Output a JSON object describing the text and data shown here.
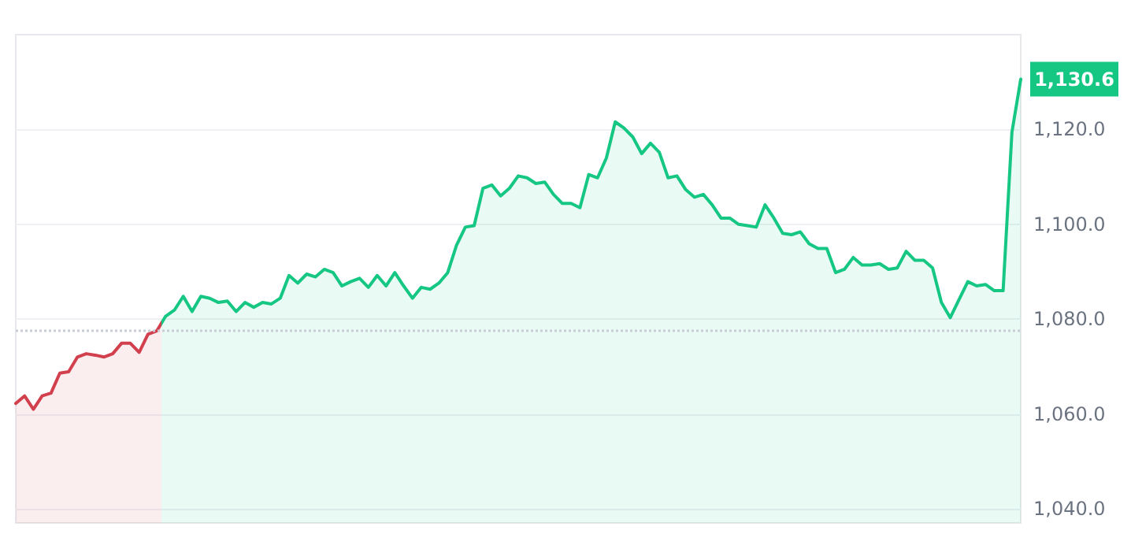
{
  "chart_data": {
    "type": "area",
    "categories": [
      null,
      null,
      null,
      null,
      null,
      null,
      null,
      null,
      null,
      null,
      null,
      null,
      null,
      null,
      null,
      null,
      null,
      null,
      null,
      null,
      null,
      null,
      null,
      null,
      null,
      null,
      null,
      null,
      null,
      null,
      null,
      null,
      null,
      null,
      null,
      null,
      null,
      null,
      null,
      null,
      null,
      null,
      null,
      null,
      null,
      null,
      null,
      null,
      null,
      null,
      null,
      null,
      null,
      null,
      null,
      null,
      null,
      null,
      null,
      null,
      null,
      null,
      null,
      null,
      null,
      null,
      null,
      null,
      null,
      null,
      null,
      null,
      null,
      null,
      null,
      null,
      null,
      null,
      null,
      null,
      null,
      null,
      null,
      null,
      null,
      null,
      null,
      null,
      null,
      null,
      null,
      null,
      null,
      null,
      null,
      null,
      null,
      null,
      null,
      null,
      null,
      null,
      null,
      null,
      null,
      null,
      null,
      null,
      null,
      null,
      null,
      null,
      null,
      null,
      null
    ],
    "series": [
      {
        "colors": [
          "#d23f4d",
          "#d23f4d",
          "#d23f4d",
          "#d23f4d",
          "#d23f4d",
          "#d23f4d",
          "#d23f4d",
          "#d23f4d",
          "#d23f4d",
          "#d23f4d",
          "#d23f4d",
          "#d23f4d",
          "#d23f4d",
          "#d23f4d",
          "#d23f4d",
          "#d23f4d",
          "#d23f4d",
          "#16c784",
          "#16c784",
          "#16c784",
          "#16c784",
          "#16c784",
          "#16c784",
          "#16c784",
          "#16c784",
          "#16c784",
          "#16c784",
          "#16c784",
          "#16c784",
          "#16c784",
          "#16c784",
          "#16c784",
          "#16c784",
          "#16c784",
          "#16c784",
          "#16c784",
          "#16c784",
          "#16c784",
          "#16c784",
          "#16c784",
          "#16c784",
          "#16c784",
          "#16c784",
          "#16c784",
          "#16c784",
          "#16c784",
          "#16c784",
          "#16c784",
          "#16c784",
          "#16c784",
          "#16c784",
          "#16c784",
          "#16c784",
          "#16c784",
          "#16c784",
          "#16c784",
          "#16c784",
          "#16c784",
          "#16c784",
          "#16c784",
          "#16c784",
          "#16c784",
          "#16c784",
          "#16c784",
          "#16c784",
          "#16c784",
          "#16c784",
          "#16c784",
          "#16c784",
          "#16c784",
          "#16c784",
          "#16c784",
          "#16c784",
          "#16c784",
          "#16c784",
          "#16c784",
          "#16c784",
          "#16c784",
          "#16c784",
          "#16c784",
          "#16c784",
          "#16c784",
          "#16c784",
          "#16c784",
          "#16c784",
          "#16c784",
          "#16c784",
          "#16c784",
          "#16c784",
          "#16c784",
          "#16c784",
          "#16c784",
          "#16c784",
          "#16c784",
          "#16c784",
          "#16c784",
          "#16c784",
          "#16c784",
          "#16c784",
          "#16c784",
          "#16c784",
          "#16c784",
          "#16c784",
          "#16c784",
          "#16c784",
          "#16c784",
          "#16c784",
          "#16c784",
          "#16c784",
          "#16c784",
          "#16c784",
          "#16c784",
          "#16c784",
          "#16c784",
          "#16c784"
        ],
        "values": [
          1062.2,
          1063.8,
          1061,
          1063.8,
          1064.4,
          1068.6,
          1068.9,
          1072,
          1072.7,
          1072.4,
          1072,
          1072.7,
          1074.9,
          1074.9,
          1073,
          1076.8,
          1077.5,
          1080.6,
          1081.9,
          1084.8,
          1081.6,
          1084.8,
          1084.4,
          1083.5,
          1083.8,
          1081.6,
          1083.5,
          1082.5,
          1083.5,
          1083.2,
          1084.4,
          1089.2,
          1087.6,
          1089.5,
          1088.9,
          1090.5,
          1089.8,
          1087,
          1087.9,
          1088.6,
          1086.7,
          1089.2,
          1087,
          1089.8,
          1087,
          1084.4,
          1086.7,
          1086.3,
          1087.6,
          1089.8,
          1095.6,
          1099.4,
          1099.7,
          1107.6,
          1108.3,
          1106,
          1107.6,
          1110.2,
          1109.8,
          1108.6,
          1108.9,
          1106.3,
          1104.4,
          1104.4,
          1103.5,
          1110.5,
          1109.8,
          1114,
          1121.6,
          1120.3,
          1118.4,
          1114.9,
          1117.1,
          1115.2,
          1109.8,
          1110.2,
          1107.3,
          1105.7,
          1106.3,
          1104.1,
          1101.3,
          1101.3,
          1100,
          1099.7,
          1099.4,
          1104.1,
          1101.3,
          1098.1,
          1097.8,
          1098.4,
          1095.9,
          1094.9,
          1094.9,
          1089.8,
          1090.5,
          1093,
          1091.4,
          1091.4,
          1091.7,
          1090.5,
          1090.8,
          1094.3,
          1092.4,
          1092.4,
          1090.8,
          1083.5,
          1080.3,
          1084.1,
          1087.9,
          1087,
          1087.3,
          1086,
          1086,
          1119.4,
          1130.6
        ]
      }
    ],
    "ylim": [
      1037,
      1140
    ],
    "yticks": [
      {
        "value": 1040,
        "label": "1,040.0"
      },
      {
        "value": 1060,
        "label": "1,060.0"
      },
      {
        "value": 1080,
        "label": "1,080.0"
      },
      {
        "value": 1100,
        "label": "1,100.0"
      },
      {
        "value": 1120,
        "label": "1,120.0"
      }
    ],
    "ref_lines": [
      {
        "axis": "y",
        "value": 1077.5,
        "color": "#c8ccd4",
        "line_style": "dotted"
      }
    ],
    "annotations": [
      "1,130.6"
    ],
    "grid": "y",
    "tick_labels": "y",
    "line_style": "solid"
  }
}
